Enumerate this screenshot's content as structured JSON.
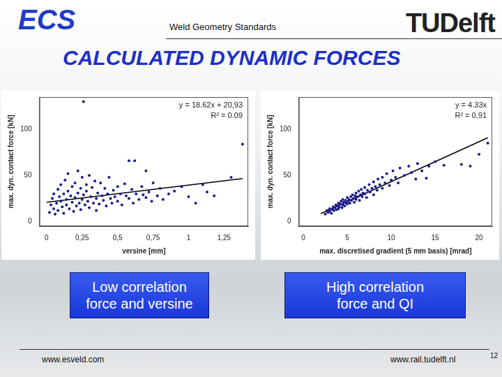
{
  "header": {
    "brand": "ECS",
    "subtitle": "Weld Geometry Standards",
    "logo": "TUDelft"
  },
  "title": "CALCULATED DYNAMIC FORCES",
  "captions": [
    "Low correlation force and versine",
    "High correlation force and QI"
  ],
  "footer": {
    "left": "www.esveld.com",
    "right": "www.rail.tudelft.nl",
    "page": "12"
  },
  "chart_data": [
    {
      "type": "scatter",
      "x_label": "versine [mm]",
      "y_label": "max. dyn. contact force [kN]",
      "xlim": [
        -0.05,
        1.42
      ],
      "ylim": [
        -5,
        135
      ],
      "xticks": [
        0,
        {
          "value": 0.25,
          "label": "0,25"
        },
        {
          "value": 0.5,
          "label": "0,5"
        },
        {
          "value": 0.75,
          "label": "0,75"
        },
        1,
        {
          "value": 1.25,
          "label": "1,25"
        }
      ],
      "yticks": [
        0,
        50,
        100
      ],
      "grid": false,
      "marker": "circle",
      "color": "#1a1a8c",
      "annotations": [
        "y = 18.62x + 20,93",
        "R² = 0.09"
      ],
      "x": [
        0.02,
        0.03,
        0.04,
        0.05,
        0.05,
        0.06,
        0.07,
        0.08,
        0.08,
        0.09,
        0.1,
        0.1,
        0.11,
        0.12,
        0.12,
        0.13,
        0.14,
        0.14,
        0.15,
        0.15,
        0.16,
        0.17,
        0.18,
        0.18,
        0.19,
        0.2,
        0.2,
        0.21,
        0.22,
        0.22,
        0.23,
        0.24,
        0.24,
        0.25,
        0.25,
        0.26,
        0.26,
        0.27,
        0.28,
        0.28,
        0.29,
        0.3,
        0.3,
        0.31,
        0.32,
        0.33,
        0.34,
        0.35,
        0.35,
        0.36,
        0.37,
        0.38,
        0.39,
        0.4,
        0.41,
        0.42,
        0.43,
        0.44,
        0.45,
        0.46,
        0.47,
        0.48,
        0.5,
        0.5,
        0.52,
        0.53,
        0.55,
        0.56,
        0.58,
        0.58,
        0.6,
        0.61,
        0.62,
        0.63,
        0.65,
        0.67,
        0.68,
        0.7,
        0.7,
        0.72,
        0.74,
        0.75,
        0.78,
        0.8,
        0.82,
        0.86,
        0.9,
        0.95,
        1.0,
        1.05,
        1.1,
        1.13,
        1.18,
        1.3,
        1.38
      ],
      "values": [
        10,
        18,
        25,
        14,
        30,
        8,
        20,
        35,
        12,
        27,
        22,
        40,
        16,
        30,
        9,
        45,
        24,
        18,
        33,
        52,
        14,
        28,
        38,
        21,
        11,
        42,
        26,
        17,
        55,
        31,
        20,
        36,
        13,
        48,
        24,
        130,
        29,
        18,
        40,
        33,
        22,
        50,
        15,
        27,
        37,
        20,
        44,
        25,
        12,
        31,
        19,
        42,
        28,
        23,
        36,
        17,
        30,
        48,
        25,
        20,
        34,
        27,
        38,
        22,
        30,
        18,
        41,
        28,
        66,
        25,
        35,
        20,
        66,
        30,
        24,
        38,
        29,
        55,
        26,
        32,
        22,
        42,
        28,
        36,
        24,
        30,
        33,
        38,
        27,
        20,
        40,
        32,
        28,
        48,
        84
      ],
      "fit_line": {
        "type": "line",
        "color": "#000000",
        "line_style": "solid",
        "x": [
          0,
          1.38
        ],
        "values": [
          20.93,
          46.63
        ]
      }
    },
    {
      "type": "scatter",
      "x_label": "max. discretised gradient (5 mm basis) [mrad]",
      "y_label": "max. dyn. contact force [kN]",
      "xlim": [
        -0.5,
        21.5
      ],
      "ylim": [
        -5,
        135
      ],
      "xticks": [
        0,
        5,
        10,
        15,
        20
      ],
      "yticks": [
        0,
        50,
        100
      ],
      "grid": false,
      "marker": "circle",
      "color": "#1a1a8c",
      "annotations": [
        "y = 4.33x",
        "R² = 0,91"
      ],
      "x": [
        2.5,
        2.7,
        2.8,
        3,
        3,
        3.2,
        3.3,
        3.4,
        3.5,
        3.6,
        3.7,
        3.8,
        3.9,
        4,
        4,
        4.1,
        4.2,
        4.3,
        4.4,
        4.5,
        4.5,
        4.6,
        4.7,
        4.8,
        4.9,
        5,
        5,
        5.1,
        5.2,
        5.3,
        5.4,
        5.5,
        5.6,
        5.7,
        5.8,
        5.9,
        6,
        6,
        6.2,
        6.3,
        6.4,
        6.5,
        6.6,
        6.7,
        6.8,
        7,
        7,
        7.2,
        7.3,
        7.5,
        7.6,
        7.8,
        8,
        8,
        8.2,
        8.4,
        8.5,
        8.7,
        9,
        9,
        9.3,
        9.5,
        9.8,
        10,
        10.2,
        10.5,
        10.8,
        11,
        11.5,
        12,
        12.3,
        12.8,
        13,
        13.5,
        14,
        14.3,
        15,
        16,
        18,
        19,
        20,
        21
      ],
      "values": [
        8,
        12,
        10,
        11,
        14,
        9,
        13,
        16,
        12,
        15,
        18,
        13,
        17,
        14,
        20,
        16,
        19,
        22,
        15,
        18,
        24,
        21,
        17,
        23,
        20,
        19,
        26,
        22,
        24,
        20,
        27,
        23,
        29,
        25,
        21,
        28,
        24,
        31,
        27,
        33,
        23,
        29,
        35,
        27,
        31,
        30,
        37,
        26,
        34,
        40,
        32,
        36,
        29,
        43,
        38,
        34,
        46,
        40,
        36,
        48,
        42,
        52,
        39,
        45,
        55,
        48,
        42,
        58,
        50,
        60,
        53,
        46,
        63,
        55,
        47,
        60,
        65,
        61,
        62,
        60,
        73,
        85
      ],
      "fit_line": {
        "type": "line",
        "color": "#000000",
        "line_style": "solid",
        "x": [
          2,
          21
        ],
        "values": [
          8.66,
          90.93
        ]
      }
    }
  ]
}
